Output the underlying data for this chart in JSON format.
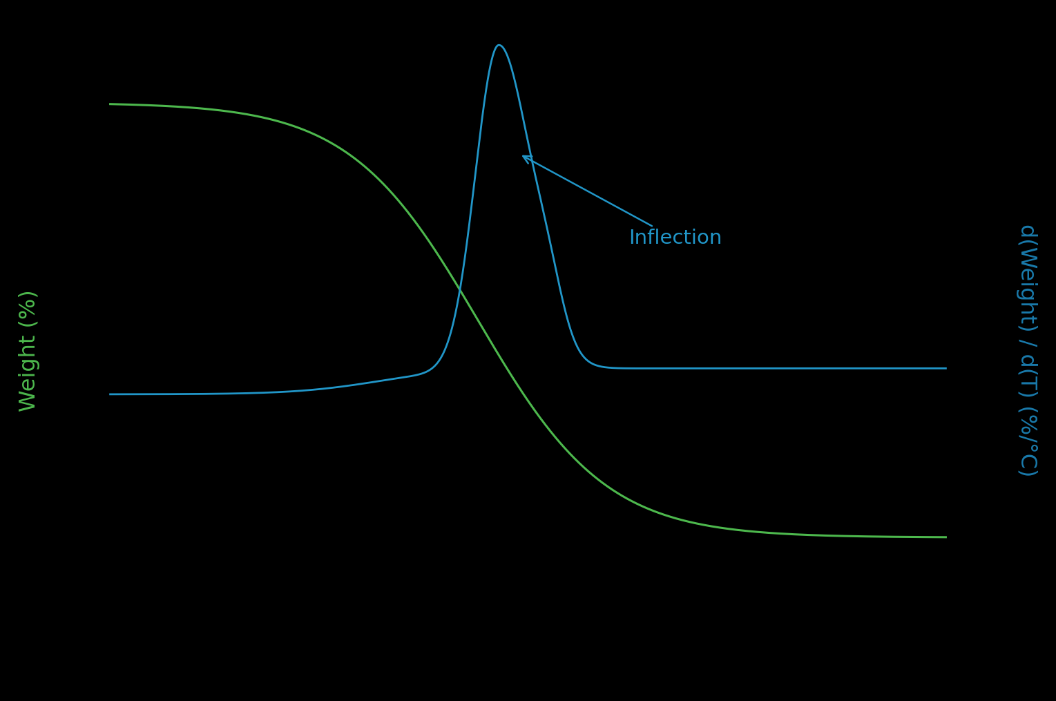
{
  "background_color": "#000000",
  "line_color_green": "#4db84d",
  "line_color_blue": "#2196c8",
  "ylabel_left": "Weight (%)",
  "ylabel_right": "d(Weight) / d(T) (%/°C)",
  "ylabel_left_color": "#4db84d",
  "ylabel_right_color": "#1a7aab",
  "annotation_text": "Inflection",
  "annotation_color": "#2196c8",
  "figsize": [
    15.29,
    10.15
  ],
  "dpi": 100
}
